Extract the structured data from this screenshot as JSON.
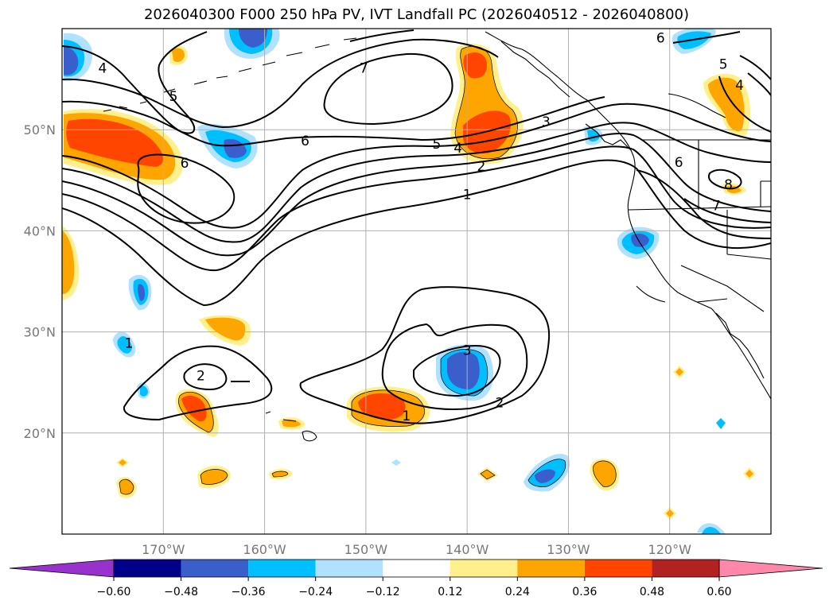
{
  "title": "2026040300 F000 250 hPa PV, IVT Landfall PC (2026040512 - 2026040800)",
  "map": {
    "lon_range": [
      -180,
      -110
    ],
    "lat_range": [
      10,
      60
    ],
    "lon_ticks": [
      -170,
      -160,
      -150,
      -140,
      -130,
      -120
    ],
    "lon_tick_labels": [
      "170°W",
      "160°W",
      "150°W",
      "140°W",
      "130°W",
      "120°W"
    ],
    "lat_ticks": [
      20,
      30,
      40,
      50
    ],
    "lat_tick_labels": [
      "20°N",
      "30°N",
      "40°N",
      "50°N"
    ],
    "contour_labels": [
      {
        "text": "4",
        "lon": -176,
        "lat": 56.1
      },
      {
        "text": "7",
        "lon": -150.2,
        "lat": 56.1
      },
      {
        "text": "5",
        "lon": -169,
        "lat": 53.3
      },
      {
        "text": "6",
        "lon": -156,
        "lat": 48.9
      },
      {
        "text": "6",
        "lon": -167.9,
        "lat": 46.7
      },
      {
        "text": "5",
        "lon": -143,
        "lat": 48.6
      },
      {
        "text": "4",
        "lon": -140.9,
        "lat": 48.2
      },
      {
        "text": "3",
        "lon": -132.2,
        "lat": 50.8
      },
      {
        "text": "2",
        "lon": -138.6,
        "lat": 46.4
      },
      {
        "text": "1",
        "lon": -140,
        "lat": 43.6
      },
      {
        "text": "6",
        "lon": -120.9,
        "lat": 59.1
      },
      {
        "text": "5",
        "lon": -114.7,
        "lat": 56.5
      },
      {
        "text": "4",
        "lon": -113.1,
        "lat": 54.4
      },
      {
        "text": "6",
        "lon": -119.1,
        "lat": 46.8
      },
      {
        "text": "8",
        "lon": -114.2,
        "lat": 44.6
      },
      {
        "text": "7",
        "lon": -115.4,
        "lat": 42.5
      },
      {
        "text": "1",
        "lon": -173.4,
        "lat": 28.9
      },
      {
        "text": "2",
        "lon": -166.3,
        "lat": 25.7
      },
      {
        "text": "3",
        "lon": -140,
        "lat": 28.2
      },
      {
        "text": "2",
        "lon": -136.8,
        "lat": 23.0
      },
      {
        "text": "1",
        "lon": -146,
        "lat": 21.7
      }
    ]
  },
  "colorbar": {
    "levels": [
      -0.6,
      -0.48,
      -0.36,
      -0.24,
      -0.12,
      0.12,
      0.24,
      0.36,
      0.48,
      0.6
    ],
    "tick_labels": [
      "−0.60",
      "−0.48",
      "−0.36",
      "−0.24",
      "−0.12",
      "0.12",
      "0.24",
      "0.36",
      "0.48",
      "0.60"
    ],
    "colors": {
      "under": "#9932cc",
      "bins": [
        "#00008b",
        "#3a5fcd",
        "#00bfff",
        "#b0e2ff",
        "#ffffff",
        "#fff08c",
        "#ffa500",
        "#ff4500",
        "#b22222"
      ],
      "over": "#ff88aa"
    }
  }
}
